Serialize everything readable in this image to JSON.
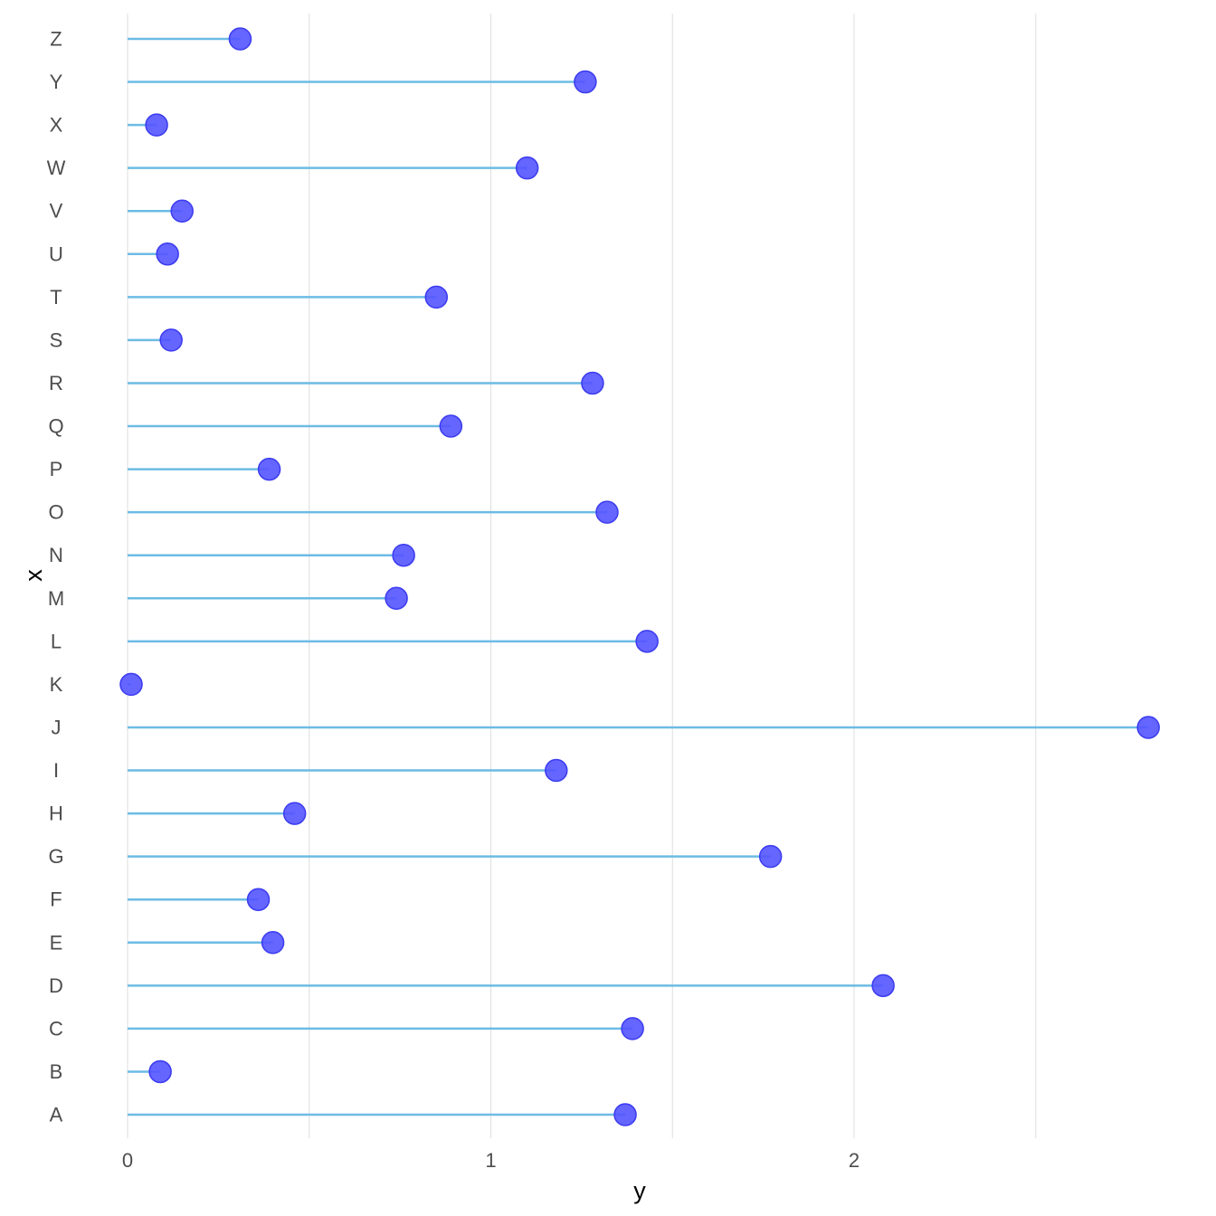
{
  "chart_data": {
    "type": "lollipop",
    "title": "",
    "xlabel": "y",
    "ylabel": "x",
    "xlim": [
      0,
      2.84
    ],
    "x_ticks": [
      0,
      1,
      2
    ],
    "x_tick_labels": [
      "0",
      "1",
      "2"
    ],
    "x_minor_ticks": [
      0.5,
      1.5,
      2.5
    ],
    "grid": true,
    "colors": {
      "stem": "#6cbbe5",
      "point_fill": "#5454ff",
      "point_stroke": "#3b3bf0",
      "grid": "#dedede"
    },
    "categories": [
      "A",
      "B",
      "C",
      "D",
      "E",
      "F",
      "G",
      "H",
      "I",
      "J",
      "K",
      "L",
      "M",
      "N",
      "O",
      "P",
      "Q",
      "R",
      "S",
      "T",
      "U",
      "V",
      "W",
      "X",
      "Y",
      "Z"
    ],
    "values": [
      1.37,
      0.09,
      1.39,
      2.08,
      0.4,
      0.36,
      1.77,
      0.46,
      1.18,
      2.81,
      0.01,
      1.43,
      0.74,
      0.76,
      1.32,
      0.39,
      0.89,
      1.28,
      0.12,
      0.85,
      0.11,
      0.15,
      1.1,
      0.08,
      1.26,
      0.31
    ]
  }
}
